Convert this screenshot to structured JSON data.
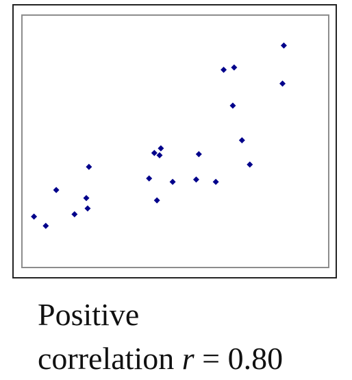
{
  "chart_data": {
    "type": "scatter",
    "title": "",
    "xlabel": "",
    "ylabel": "",
    "grid": false,
    "marker_color": "#00008b",
    "xlim": [
      0,
      1
    ],
    "ylim": [
      0,
      1
    ],
    "points": [
      {
        "x": 0.02,
        "y": 0.17
      },
      {
        "x": 0.065,
        "y": 0.13
      },
      {
        "x": 0.105,
        "y": 0.285
      },
      {
        "x": 0.175,
        "y": 0.18
      },
      {
        "x": 0.22,
        "y": 0.25
      },
      {
        "x": 0.225,
        "y": 0.205
      },
      {
        "x": 0.23,
        "y": 0.385
      },
      {
        "x": 0.46,
        "y": 0.335
      },
      {
        "x": 0.48,
        "y": 0.445
      },
      {
        "x": 0.49,
        "y": 0.24
      },
      {
        "x": 0.5,
        "y": 0.435
      },
      {
        "x": 0.505,
        "y": 0.465
      },
      {
        "x": 0.55,
        "y": 0.32
      },
      {
        "x": 0.64,
        "y": 0.33
      },
      {
        "x": 0.65,
        "y": 0.44
      },
      {
        "x": 0.715,
        "y": 0.32
      },
      {
        "x": 0.745,
        "y": 0.805
      },
      {
        "x": 0.78,
        "y": 0.65
      },
      {
        "x": 0.785,
        "y": 0.815
      },
      {
        "x": 0.815,
        "y": 0.5
      },
      {
        "x": 0.845,
        "y": 0.395
      },
      {
        "x": 0.97,
        "y": 0.745
      },
      {
        "x": 0.975,
        "y": 0.91
      }
    ]
  },
  "caption": {
    "line1": "Positive",
    "line2_prefix": "correlation ",
    "line2_var": "r",
    "line2_suffix": " = 0.80"
  }
}
